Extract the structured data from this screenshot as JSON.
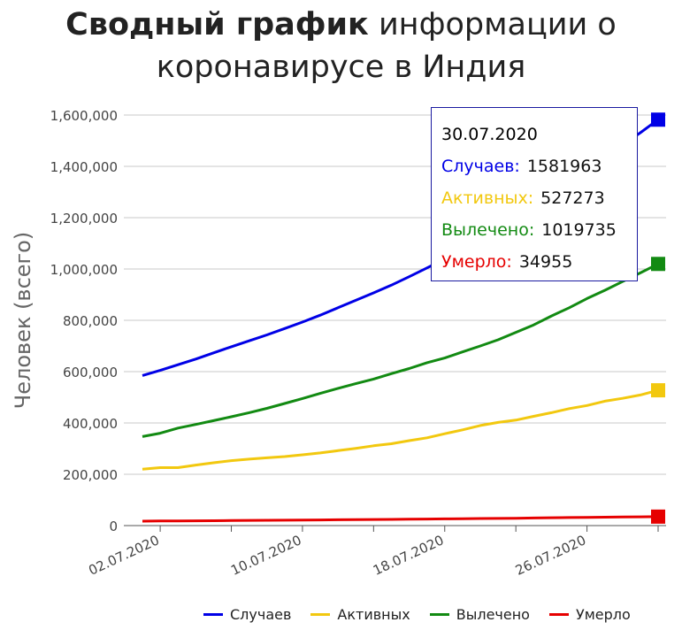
{
  "title": {
    "bold": "Сводный график",
    "rest_line1": "информации о",
    "line2": "коронавирусе в Индия"
  },
  "tooltip": {
    "date": "30.07.2020",
    "rows": [
      {
        "label": "Случаев:",
        "value": "1581963",
        "color": "#0000e6"
      },
      {
        "label": "Активных:",
        "value": "527273",
        "color": "#f2c80f"
      },
      {
        "label": "Вылечено:",
        "value": "1019735",
        "color": "#128a12"
      },
      {
        "label": "Умерло:",
        "value": "34955",
        "color": "#e60000"
      }
    ]
  },
  "chart_data": {
    "type": "line",
    "title": "Сводный график информации о коронавирусе в Индия",
    "xlabel": "",
    "ylabel": "Человек (всего)",
    "x_ticks": [
      "02.07.2020",
      "10.07.2020",
      "18.07.2020",
      "26.07.2020"
    ],
    "x": [
      "01.07.2020",
      "02.07.2020",
      "03.07.2020",
      "04.07.2020",
      "05.07.2020",
      "06.07.2020",
      "07.07.2020",
      "08.07.2020",
      "09.07.2020",
      "10.07.2020",
      "11.07.2020",
      "12.07.2020",
      "13.07.2020",
      "14.07.2020",
      "15.07.2020",
      "16.07.2020",
      "17.07.2020",
      "18.07.2020",
      "19.07.2020",
      "20.07.2020",
      "21.07.2020",
      "22.07.2020",
      "23.07.2020",
      "24.07.2020",
      "25.07.2020",
      "26.07.2020",
      "27.07.2020",
      "28.07.2020",
      "29.07.2020",
      "30.07.2020"
    ],
    "y_ticks": [
      "0",
      "200,000",
      "400,000",
      "600,000",
      "800,000",
      "1,000,000",
      "1,200,000",
      "1,400,000",
      "1,600,000"
    ],
    "ylim": [
      0,
      1600000
    ],
    "grid": true,
    "legend_position": "bottom",
    "series": [
      {
        "name": "Случаев",
        "color": "#0000e6",
        "values": [
          585000,
          605000,
          627000,
          649000,
          673000,
          697000,
          720000,
          743000,
          768000,
          793000,
          820000,
          849000,
          878000,
          907000,
          937000,
          970000,
          1004000,
          1039000,
          1078000,
          1119000,
          1155000,
          1193000,
          1238000,
          1287000,
          1337000,
          1386000,
          1435000,
          1483000,
          1531000,
          1581963
        ]
      },
      {
        "name": "Активных",
        "color": "#f2c80f",
        "values": [
          220000,
          226000,
          226000,
          236000,
          245000,
          253000,
          259000,
          264000,
          269000,
          276000,
          283000,
          292000,
          301000,
          311000,
          319000,
          331000,
          342000,
          358000,
          373000,
          390000,
          402000,
          411000,
          426000,
          440000,
          456000,
          468000,
          485000,
          496000,
          509000,
          527273
        ]
      },
      {
        "name": "Вылечено",
        "color": "#128a12",
        "values": [
          347000,
          360000,
          380000,
          394000,
          409000,
          424000,
          440000,
          457000,
          476000,
          495000,
          515000,
          535000,
          553000,
          571000,
          592000,
          612000,
          635000,
          653000,
          677000,
          700000,
          724000,
          753000,
          782000,
          817000,
          849000,
          885000,
          917000,
          951000,
          985000,
          1019735
        ]
      },
      {
        "name": "Умерло",
        "color": "#e60000",
        "values": [
          17400,
          17800,
          18200,
          18600,
          19100,
          19700,
          20200,
          20700,
          21200,
          21600,
          22100,
          22700,
          23200,
          23700,
          24300,
          25000,
          25600,
          26300,
          27000,
          27500,
          28100,
          28700,
          29500,
          30600,
          31400,
          32100,
          32800,
          33400,
          34200,
          34955
        ]
      }
    ]
  }
}
